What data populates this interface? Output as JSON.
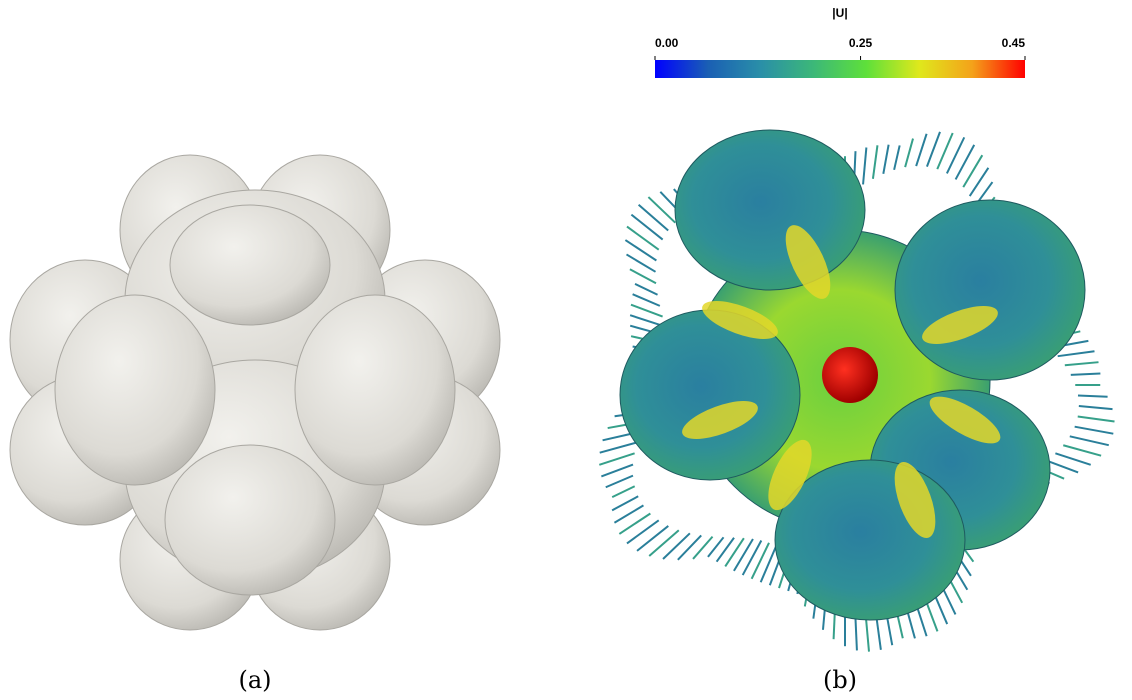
{
  "panels": [
    {
      "label": "(a)"
    },
    {
      "label": "(b)",
      "colorbar": {
        "title": "|U|",
        "range": [
          0,
          0.45
        ],
        "ticks": [
          {
            "value": 0,
            "label": "0.00"
          },
          {
            "value": 0.25,
            "label": "0.25"
          },
          {
            "value": 0.45,
            "label": "0.45"
          }
        ],
        "colormap": [
          "#0000ff",
          "#1a5fb4",
          "#2a8fa8",
          "#3cb878",
          "#5ee03a",
          "#dfe81c",
          "#f4a21a",
          "#ff0000"
        ]
      }
    }
  ]
}
